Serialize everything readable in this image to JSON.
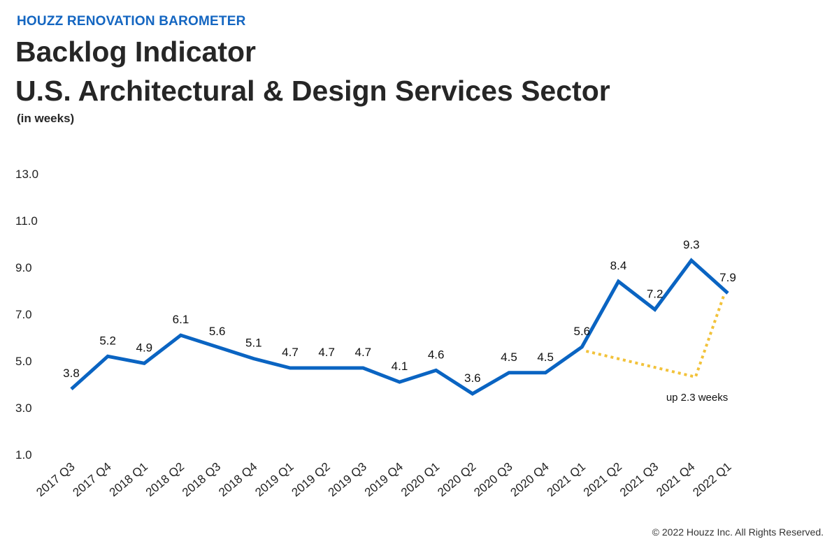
{
  "header": {
    "brand": "HOUZZ RENOVATION BAROMETER",
    "title_line1": "Backlog Indicator",
    "title_line2": "U.S. Architectural & Design Services Sector",
    "unit": "(in weeks)"
  },
  "footer": {
    "copyright": "© 2022 Houzz Inc. All Rights Reserved."
  },
  "colors": {
    "line": "#0a64c2",
    "annotation": "#f2c23a",
    "brand": "#1466c1"
  },
  "chart_data": {
    "type": "line",
    "categories": [
      "2017 Q3",
      "2017 Q4",
      "2018 Q1",
      "2018 Q2",
      "2018 Q3",
      "2018 Q4",
      "2019 Q1",
      "2019 Q2",
      "2019 Q3",
      "2019 Q4",
      "2020 Q1",
      "2020 Q2",
      "2020 Q3",
      "2020 Q4",
      "2021 Q1",
      "2021 Q2",
      "2021 Q3",
      "2021 Q4",
      "2022 Q1"
    ],
    "values": [
      3.8,
      5.2,
      4.9,
      6.1,
      5.6,
      5.1,
      4.7,
      4.7,
      4.7,
      4.1,
      4.6,
      3.6,
      4.5,
      4.5,
      5.6,
      8.4,
      7.2,
      9.3,
      7.9
    ],
    "labels": [
      "3.8",
      "5.2",
      "4.9",
      "6.1",
      "5.6",
      "5.1",
      "4.7",
      "4.7",
      "4.7",
      "4.1",
      "4.6",
      "3.6",
      "4.5",
      "4.5",
      "5.6",
      "8.4",
      "7.2",
      "9.3",
      "7.9"
    ],
    "yticks": [
      "1.0",
      "3.0",
      "5.0",
      "7.0",
      "9.0",
      "11.0",
      "13.0"
    ],
    "ylim": [
      1,
      13
    ],
    "grid": false,
    "annotation": {
      "text": "up 2.3 weeks",
      "from_category": "2021 Q1",
      "to_category": "2022 Q1"
    }
  }
}
